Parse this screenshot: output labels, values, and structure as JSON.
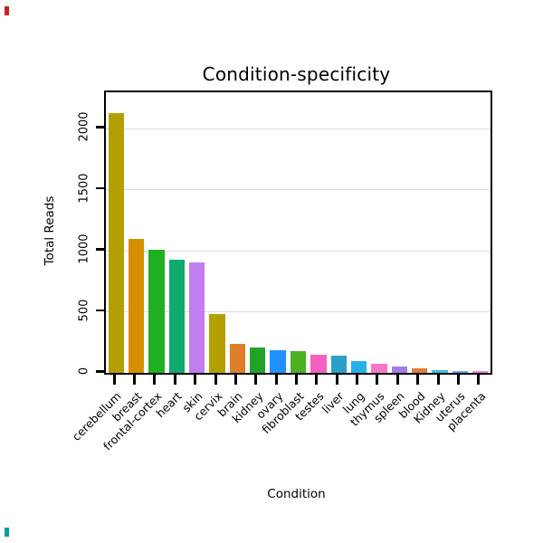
{
  "chart_data": {
    "type": "bar",
    "title": "Condition-specificity",
    "xlabel": "Condition",
    "ylabel": "Total Reads",
    "ylim": [
      0,
      2300
    ],
    "yticks": [
      0,
      500,
      1000,
      1500,
      2000
    ],
    "grid": true,
    "legend": null,
    "categories": [
      "cerebellum",
      "breast",
      "frontal-cortex",
      "heart",
      "skin",
      "cervix",
      "brain",
      "kidney",
      "ovary",
      "fibroblast",
      "testes",
      "liver",
      "lung",
      "thymus",
      "spleen",
      "blood",
      "Kidney",
      "uterus",
      "placenta"
    ],
    "values": [
      2130,
      1100,
      1010,
      930,
      905,
      480,
      240,
      210,
      185,
      175,
      145,
      140,
      100,
      75,
      55,
      40,
      25,
      18,
      12
    ],
    "bar_colors": [
      "#b3a000",
      "#d78f00",
      "#21b021",
      "#0faa6e",
      "#c07ef0",
      "#b3a000",
      "#e07d28",
      "#21a32a",
      "#1e90ff",
      "#4cb022",
      "#f561c0",
      "#28a0c8",
      "#2ab0e8",
      "#f575c8",
      "#9f7fe8",
      "#e08038",
      "#38c0e0",
      "#6f9fe8",
      "#f580d0"
    ]
  },
  "decorations": {
    "corner_top_color": "#cc2020",
    "corner_bottom_color": "#00a0a0"
  }
}
